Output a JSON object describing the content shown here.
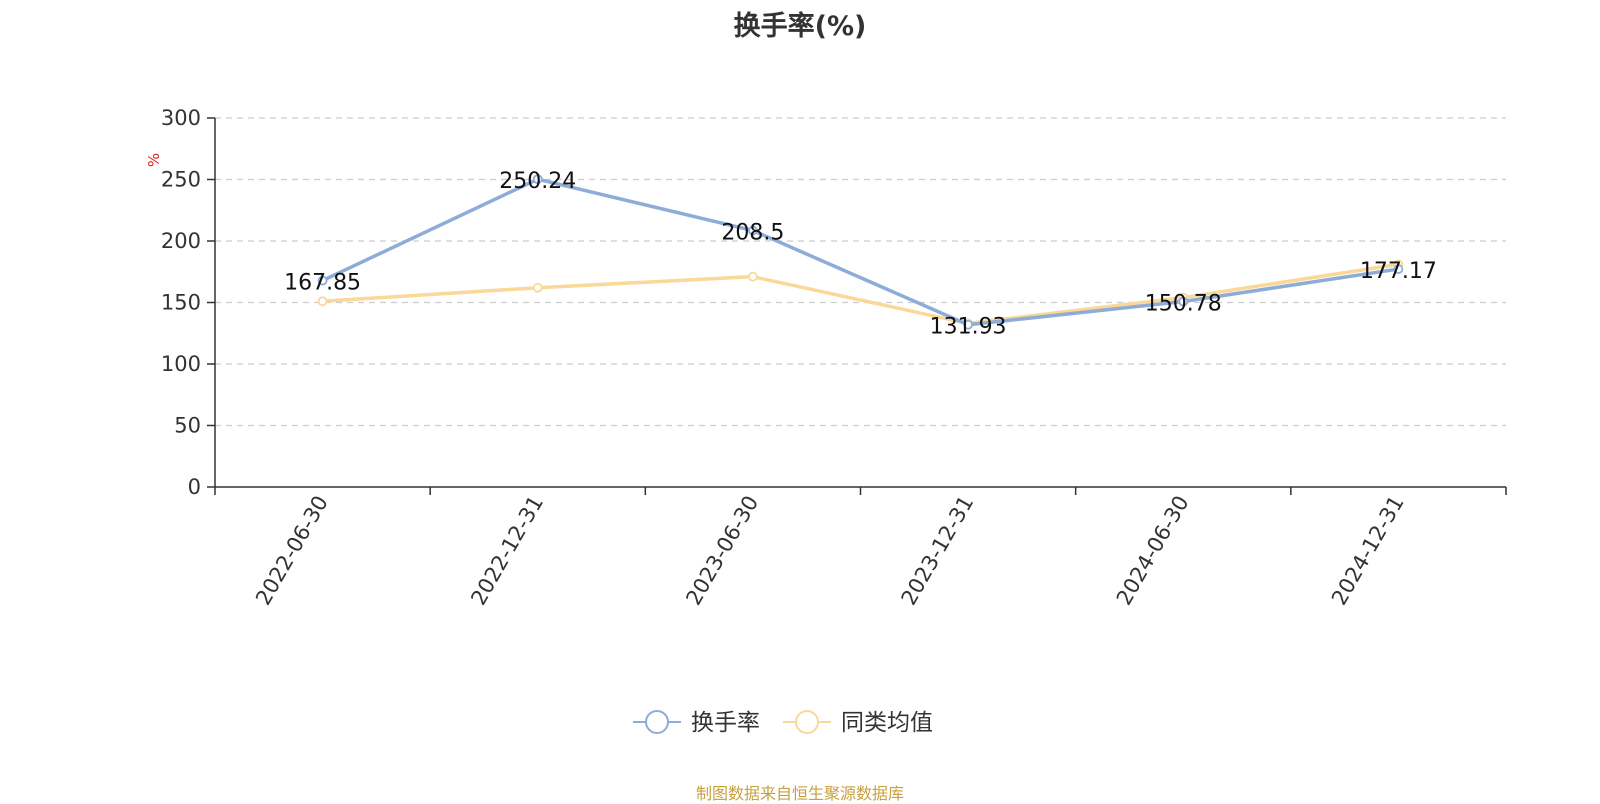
{
  "title": "换手率(%)",
  "source": "制图数据来自恒生聚源数据库",
  "chart_data": {
    "type": "line",
    "title": "换手率(%)",
    "ylabel": "%",
    "xlabel": "",
    "categories": [
      "2022-06-30",
      "2022-12-31",
      "2023-06-30",
      "2023-12-31",
      "2024-06-30",
      "2024-12-31"
    ],
    "ylim": [
      0,
      300
    ],
    "yticks": [
      0,
      50,
      100,
      150,
      200,
      250,
      300
    ],
    "grid": true,
    "legend_position": "bottom-center",
    "series": [
      {
        "name": "换手率",
        "color": "#8eacd8",
        "values": [
          167.85,
          250.24,
          208.5,
          131.93,
          150.78,
          177.17
        ],
        "show_labels": true
      },
      {
        "name": "同类均值",
        "color": "#f9d898",
        "values": [
          151,
          162,
          171,
          133,
          154,
          181
        ],
        "show_labels": false
      }
    ]
  }
}
